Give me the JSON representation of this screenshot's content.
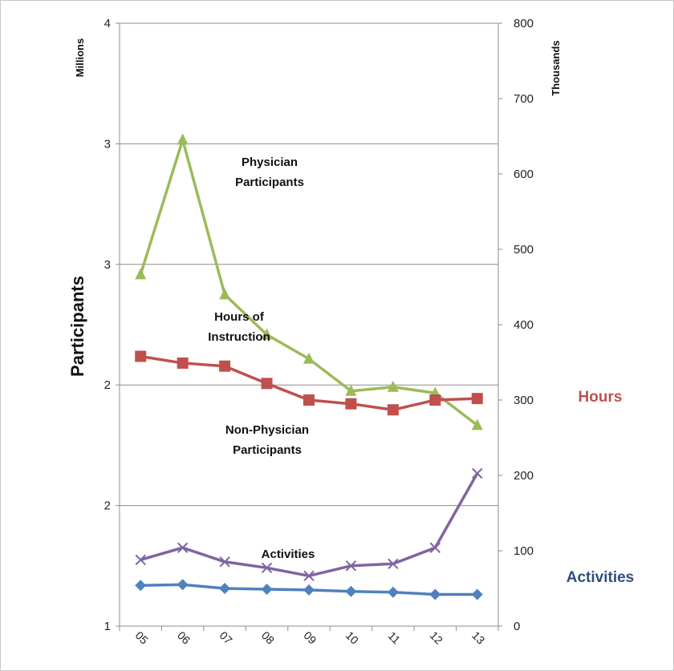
{
  "chart_data": {
    "type": "line",
    "ylabel": "Participants",
    "left_axis": {
      "unit_label": "Millions",
      "tick_labels": [
        "1",
        "2",
        "2",
        "3",
        "3",
        "4"
      ]
    },
    "right_axis": {
      "unit_label": "Thousands",
      "ylim": [
        0,
        800
      ],
      "ticks": [
        0,
        100,
        200,
        300,
        400,
        500,
        600,
        700,
        800
      ]
    },
    "categories": [
      "05",
      "06",
      "07",
      "08",
      "09",
      "10",
      "11",
      "12",
      "13"
    ],
    "grid": true,
    "series": [
      {
        "name": "Physician Participants",
        "color": "#9bbb59",
        "marker": "triangle",
        "axis": "left",
        "values": [
          2.75,
          3.42,
          2.65,
          2.45,
          2.33,
          2.17,
          2.19,
          2.16,
          2.0
        ]
      },
      {
        "name": "Hours of Instruction",
        "color": "#c0504d",
        "marker": "square",
        "axis": "right",
        "values": [
          358,
          349,
          345,
          322,
          300,
          295,
          287,
          300,
          302
        ]
      },
      {
        "name": "Non-Physician Participants",
        "color": "#8064a2",
        "marker": "x",
        "axis": "left",
        "values": [
          1.33,
          1.39,
          1.32,
          1.29,
          1.25,
          1.3,
          1.31,
          1.39,
          1.76
        ]
      },
      {
        "name": "Activities",
        "color": "#4f81bd",
        "marker": "diamond",
        "axis": "right",
        "values": [
          54,
          55,
          50,
          49,
          48,
          46,
          45,
          42,
          42
        ]
      }
    ],
    "annotations": {
      "physician": [
        "Physician",
        "Participants"
      ],
      "hours": [
        "Hours of",
        "Instruction"
      ],
      "non_physician": [
        "Non-Physician",
        "Participants"
      ],
      "activities": "Activities"
    },
    "side_labels": [
      {
        "text": "Hours",
        "color": "#c0504d"
      },
      {
        "text": "Activities",
        "color": "#2f4f7f"
      }
    ]
  }
}
